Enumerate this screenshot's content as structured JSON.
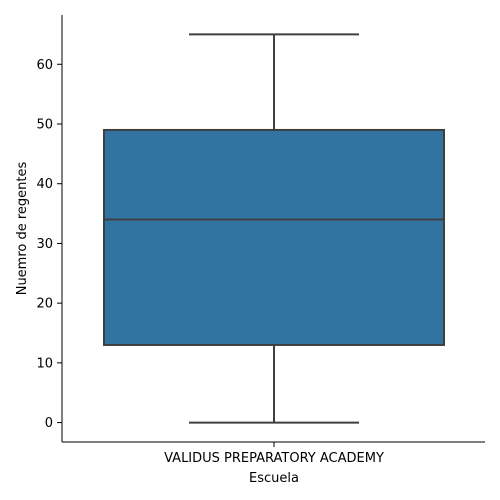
{
  "chart_data": {
    "type": "box",
    "title": "",
    "xlabel": "Escuela",
    "ylabel": "Nuemro de regentes",
    "categories": [
      "VALIDUS PREPARATORY ACADEMY"
    ],
    "boxes": [
      {
        "category": "VALIDUS PREPARATORY ACADEMY",
        "whisker_low": 0,
        "q1": 13,
        "median": 34,
        "q3": 49,
        "whisker_high": 65
      }
    ],
    "ylim": [
      -3.25,
      68.25
    ],
    "yticks": [
      0,
      10,
      20,
      30,
      40,
      50,
      60
    ],
    "grid": false,
    "colors": {
      "box_fill": "#3274a1",
      "line": "#3f3f3f",
      "axis": "#000000"
    }
  }
}
